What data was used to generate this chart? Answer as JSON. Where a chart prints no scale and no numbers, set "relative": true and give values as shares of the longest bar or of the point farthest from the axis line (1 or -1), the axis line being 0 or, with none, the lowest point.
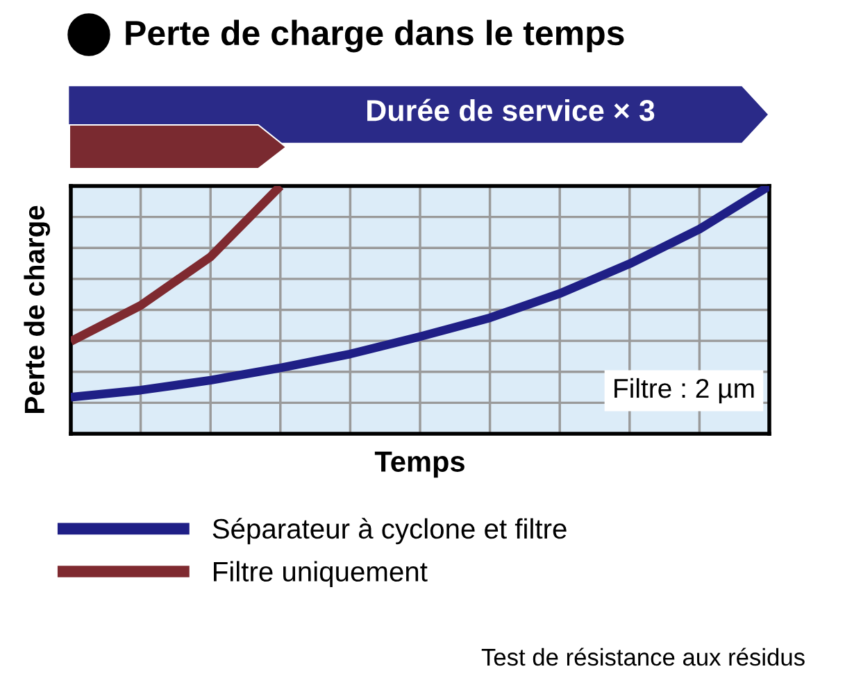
{
  "chart_data": {
    "type": "line",
    "title": "Perte de charge dans le temps",
    "xlabel": "Temps",
    "ylabel": "Perte de charge",
    "relative": true,
    "grid": true,
    "legend": "bottom",
    "marker": "none",
    "line_style": "solid",
    "categories": [
      null,
      null,
      null,
      null,
      null,
      null,
      null,
      null,
      null,
      null,
      null
    ],
    "series": [
      {
        "name": "Séparateur à cyclone et filtre",
        "color": "#1f1f86",
        "values": [
          0.148,
          0.176,
          0.216,
          0.266,
          0.322,
          0.392,
          0.468,
          0.566,
          0.686,
          0.826,
          1.0
        ]
      },
      {
        "name": "Filtre uniquement",
        "color": "#7f2a30",
        "values": [
          0.373,
          0.518,
          0.714,
          1.0,
          null,
          null,
          null,
          null,
          null,
          null,
          null
        ]
      }
    ],
    "annotations": [
      "Durée de service × 3",
      "Filtre : 2 µm",
      "Test de résistance aux résidus"
    ]
  }
}
